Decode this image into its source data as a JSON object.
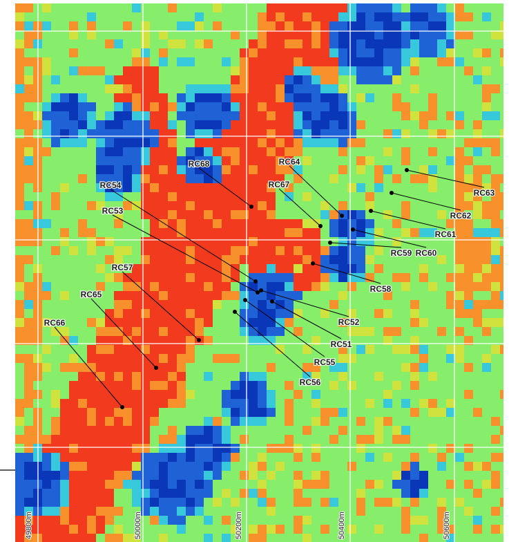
{
  "map": {
    "palette": {
      "red": "#f23a1e",
      "orange": "#f8902c",
      "yellow_green": "#cfe23e",
      "green": "#86ee6a",
      "cyan": "#38c8dc",
      "blue": "#1f62d6",
      "deep_blue": "#0a36b8",
      "grid_line": "#ffffff",
      "leader_line": "#000000"
    },
    "grid_labels": [
      {
        "text": "49800m"
      },
      {
        "text": "50000m"
      },
      {
        "text": "50200m"
      },
      {
        "text": "50400m"
      },
      {
        "text": "50600m"
      }
    ],
    "drillholes": [
      {
        "id": "RC51"
      },
      {
        "id": "RC52"
      },
      {
        "id": "RC53"
      },
      {
        "id": "RC54"
      },
      {
        "id": "RC55"
      },
      {
        "id": "RC56"
      },
      {
        "id": "RC57"
      },
      {
        "id": "RC58"
      },
      {
        "id": "RC59"
      },
      {
        "id": "RC60"
      },
      {
        "id": "RC61"
      },
      {
        "id": "RC62"
      },
      {
        "id": "RC63"
      },
      {
        "id": "RC64"
      },
      {
        "id": "RC65"
      },
      {
        "id": "RC66"
      },
      {
        "id": "RC67"
      },
      {
        "id": "RC68"
      }
    ]
  }
}
